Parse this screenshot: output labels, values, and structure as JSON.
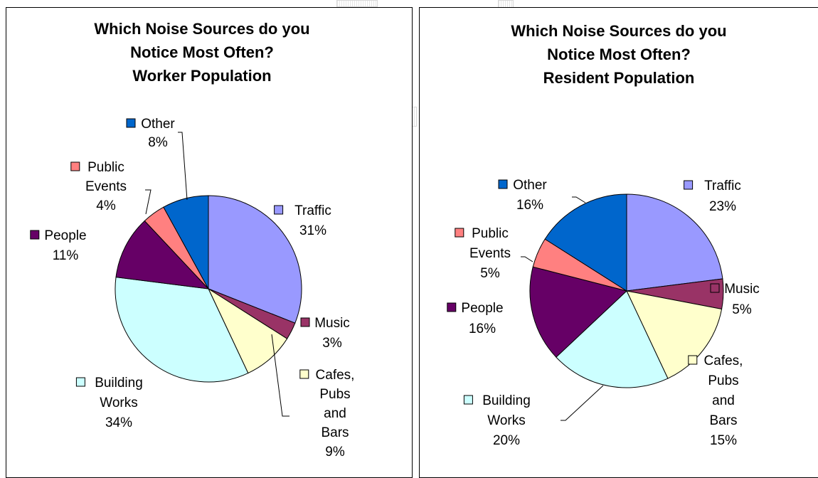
{
  "chart_data": [
    {
      "type": "pie",
      "title_lines": [
        "Which Noise Sources do you",
        "Notice Most Often?",
        "Worker Population"
      ],
      "slices": [
        {
          "label_lines": [
            "Traffic"
          ],
          "pct": "31%",
          "value": 31,
          "color": "#9999ff"
        },
        {
          "label_lines": [
            "Music"
          ],
          "pct": "3%",
          "value": 3,
          "color": "#993366"
        },
        {
          "label_lines": [
            "Cafes,",
            "Pubs",
            "and",
            "Bars"
          ],
          "pct": "9%",
          "value": 9,
          "color": "#ffffcc"
        },
        {
          "label_lines": [
            "Building",
            "Works"
          ],
          "pct": "34%",
          "value": 34,
          "color": "#ccffff"
        },
        {
          "label_lines": [
            "People"
          ],
          "pct": "11%",
          "value": 11,
          "color": "#660066"
        },
        {
          "label_lines": [
            "Public",
            "Events"
          ],
          "pct": "4%",
          "value": 4,
          "color": "#ff8080"
        },
        {
          "label_lines": [
            "Other"
          ],
          "pct": "8%",
          "value": 8,
          "color": "#0066cc"
        }
      ]
    },
    {
      "type": "pie",
      "title_lines": [
        "Which Noise Sources do you",
        "Notice Most Often?",
        "Resident Population"
      ],
      "slices": [
        {
          "label_lines": [
            "Traffic"
          ],
          "pct": "23%",
          "value": 23,
          "color": "#9999ff"
        },
        {
          "label_lines": [
            "Music"
          ],
          "pct": "5%",
          "value": 5,
          "color": "#993366"
        },
        {
          "label_lines": [
            "Cafes,",
            "Pubs",
            "and",
            "Bars"
          ],
          "pct": "15%",
          "value": 15,
          "color": "#ffffcc"
        },
        {
          "label_lines": [
            "Building",
            "Works"
          ],
          "pct": "20%",
          "value": 20,
          "color": "#ccffff"
        },
        {
          "label_lines": [
            "People"
          ],
          "pct": "16%",
          "value": 16,
          "color": "#660066"
        },
        {
          "label_lines": [
            "Public",
            "Events"
          ],
          "pct": "5%",
          "value": 5,
          "color": "#ff8080"
        },
        {
          "label_lines": [
            "Other"
          ],
          "pct": "16%",
          "value": 16,
          "color": "#0066cc"
        }
      ]
    }
  ]
}
